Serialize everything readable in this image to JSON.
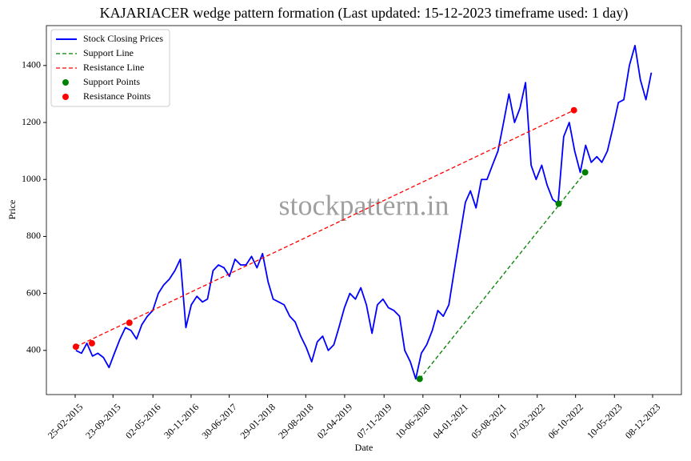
{
  "chart_data": {
    "type": "line",
    "title": "KAJARIACER wedge pattern formation (Last updated: 15-12-2023 timeframe used: 1 day)",
    "xlabel": "Date",
    "ylabel": "Price",
    "watermark": "stockpattern.in",
    "legend": "upper left",
    "xlim": [
      "2014-09-18",
      "2024-05-16"
    ],
    "ylim": [
      245,
      1540
    ],
    "yticks": [
      400,
      600,
      800,
      1000,
      1200,
      1400
    ],
    "xticks": [
      {
        "value": "2015-02-25",
        "label": "25-02-2015"
      },
      {
        "value": "2015-09-23",
        "label": "23-09-2015"
      },
      {
        "value": "2016-05-02",
        "label": "02-05-2016"
      },
      {
        "value": "2016-11-30",
        "label": "30-11-2016"
      },
      {
        "value": "2017-06-30",
        "label": "30-06-2017"
      },
      {
        "value": "2018-01-29",
        "label": "29-01-2018"
      },
      {
        "value": "2018-08-29",
        "label": "29-08-2018"
      },
      {
        "value": "2019-04-02",
        "label": "02-04-2019"
      },
      {
        "value": "2019-11-07",
        "label": "07-11-2019"
      },
      {
        "value": "2020-06-10",
        "label": "10-06-2020"
      },
      {
        "value": "2021-01-04",
        "label": "04-01-2021"
      },
      {
        "value": "2021-08-05",
        "label": "05-08-2021"
      },
      {
        "value": "2022-03-07",
        "label": "07-03-2022"
      },
      {
        "value": "2022-10-06",
        "label": "06-10-2022"
      },
      {
        "value": "2023-05-10",
        "label": "10-05-2023"
      },
      {
        "value": "2023-12-08",
        "label": "08-12-2023"
      }
    ],
    "series": [
      {
        "name": "Stock Closing Prices",
        "kind": "line",
        "dash": false,
        "color": "#0000ff",
        "x": [
          "2015-03-01",
          "2015-04-01",
          "2015-05-01",
          "2015-06-01",
          "2015-07-01",
          "2015-08-01",
          "2015-09-01",
          "2015-10-01",
          "2015-11-01",
          "2015-12-01",
          "2016-01-01",
          "2016-02-01",
          "2016-03-01",
          "2016-04-01",
          "2016-05-01",
          "2016-06-01",
          "2016-07-01",
          "2016-08-01",
          "2016-09-01",
          "2016-10-01",
          "2016-11-01",
          "2016-12-01",
          "2017-01-01",
          "2017-02-01",
          "2017-03-01",
          "2017-04-01",
          "2017-05-01",
          "2017-06-01",
          "2017-07-01",
          "2017-08-01",
          "2017-09-01",
          "2017-10-01",
          "2017-11-01",
          "2017-12-01",
          "2018-01-01",
          "2018-02-01",
          "2018-03-01",
          "2018-04-01",
          "2018-05-01",
          "2018-06-01",
          "2018-07-01",
          "2018-08-01",
          "2018-09-01",
          "2018-10-01",
          "2018-11-01",
          "2018-12-01",
          "2019-01-01",
          "2019-02-01",
          "2019-03-01",
          "2019-04-01",
          "2019-05-01",
          "2019-06-01",
          "2019-07-01",
          "2019-08-01",
          "2019-09-01",
          "2019-10-01",
          "2019-11-01",
          "2019-12-01",
          "2020-01-01",
          "2020-02-01",
          "2020-03-01",
          "2020-04-01",
          "2020-05-01",
          "2020-06-01",
          "2020-07-01",
          "2020-08-01",
          "2020-09-01",
          "2020-10-01",
          "2020-11-01",
          "2020-12-01",
          "2021-01-01",
          "2021-02-01",
          "2021-03-01",
          "2021-04-01",
          "2021-05-01",
          "2021-06-01",
          "2021-07-01",
          "2021-08-01",
          "2021-09-01",
          "2021-10-01",
          "2021-11-01",
          "2021-12-01",
          "2022-01-01",
          "2022-02-01",
          "2022-03-01",
          "2022-04-01",
          "2022-05-01",
          "2022-06-01",
          "2022-07-01",
          "2022-08-01",
          "2022-09-01",
          "2022-10-01",
          "2022-11-01",
          "2022-12-01",
          "2023-01-01",
          "2023-02-01",
          "2023-03-01",
          "2023-04-01",
          "2023-05-01",
          "2023-06-01",
          "2023-07-01",
          "2023-08-01",
          "2023-09-01",
          "2023-10-01",
          "2023-11-01",
          "2023-12-01"
        ],
        "values": [
          400,
          390,
          425,
          380,
          390,
          375,
          340,
          390,
          440,
          480,
          470,
          440,
          490,
          520,
          540,
          600,
          630,
          650,
          680,
          720,
          480,
          560,
          590,
          570,
          580,
          680,
          700,
          690,
          660,
          720,
          700,
          700,
          730,
          690,
          740,
          640,
          580,
          570,
          560,
          520,
          500,
          450,
          410,
          360,
          430,
          450,
          400,
          420,
          480,
          550,
          600,
          580,
          620,
          560,
          460,
          560,
          580,
          550,
          540,
          520,
          400,
          360,
          300,
          390,
          420,
          470,
          540,
          520,
          560,
          680,
          800,
          920,
          960,
          900,
          1000,
          1000,
          1050,
          1100,
          1200,
          1300,
          1200,
          1250,
          1340,
          1050,
          1000,
          1050,
          980,
          930,
          915,
          1150,
          1200,
          1100,
          1025,
          1120,
          1060,
          1080,
          1060,
          1100,
          1180,
          1270,
          1280,
          1400,
          1470,
          1350,
          1280,
          1375
        ]
      },
      {
        "name": "Support Line",
        "kind": "line",
        "dash": true,
        "color": "#008000",
        "x": [
          "2020-05-23",
          "2022-11-28"
        ],
        "values": [
          300,
          1025
        ]
      },
      {
        "name": "Resistance Line",
        "kind": "line",
        "dash": true,
        "color": "#ff0000",
        "x": [
          "2015-03-01",
          "2022-09-27"
        ],
        "values": [
          413,
          1243
        ]
      },
      {
        "name": "Support Points",
        "kind": "scatter",
        "dash": false,
        "color": "#008000",
        "x": [
          "2020-05-23",
          "2022-07-04",
          "2022-11-28"
        ],
        "values": [
          300,
          915,
          1025
        ]
      },
      {
        "name": "Resistance Points",
        "kind": "scatter",
        "dash": false,
        "color": "#ff0000",
        "x": [
          "2015-03-01",
          "2015-05-29",
          "2015-12-23",
          "2022-09-27"
        ],
        "values": [
          413,
          425,
          497,
          1243
        ]
      }
    ]
  }
}
